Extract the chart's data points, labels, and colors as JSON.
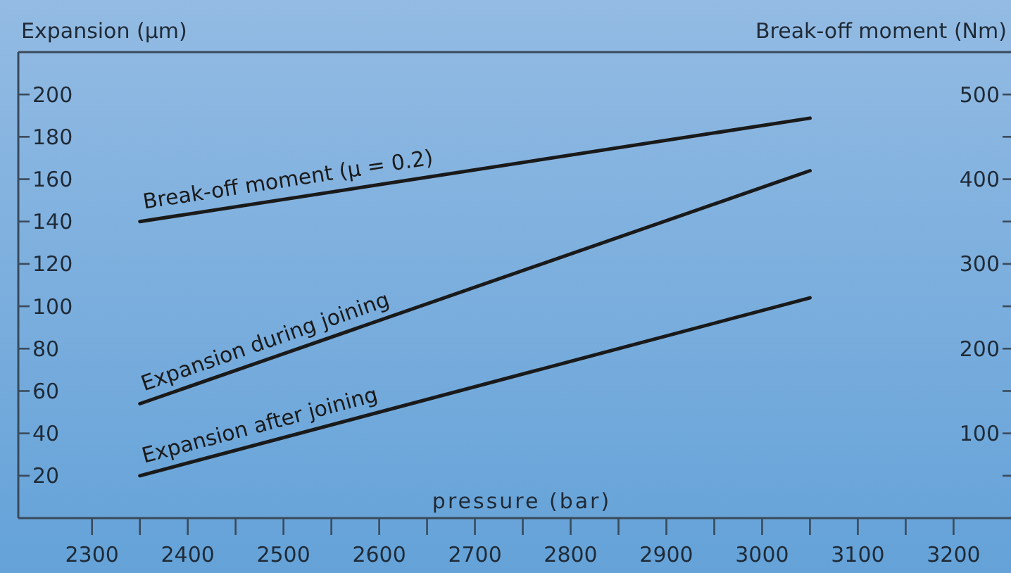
{
  "chart_data": {
    "type": "line",
    "xlabel": "pressure (bar)",
    "ylabel": "Expansion (µm)",
    "y2label": "Break-off moment (Nm)",
    "xlim": [
      2223,
      3260
    ],
    "xticks": [
      2300,
      {
        "value": 2350,
        "label": null
      },
      2400,
      {
        "value": 2450,
        "label": null
      },
      2500,
      {
        "value": 2550,
        "label": null
      },
      2600,
      {
        "value": 2650,
        "label": null
      },
      2700,
      {
        "value": 2750,
        "label": null
      },
      2800,
      {
        "value": 2850,
        "label": null
      },
      2900,
      {
        "value": 2950,
        "label": null
      },
      3000,
      {
        "value": 3050,
        "label": null
      },
      3100,
      {
        "value": 3150,
        "label": null
      },
      3200
    ],
    "ylim": [
      0,
      220
    ],
    "yticks": [
      20,
      40,
      60,
      80,
      100,
      120,
      140,
      160,
      180,
      200
    ],
    "y2lim": [
      0,
      550
    ],
    "y2ticks": [
      {
        "value": 50,
        "label": null
      },
      100,
      {
        "value": 150,
        "label": null
      },
      200,
      {
        "value": 250,
        "label": null
      },
      300,
      {
        "value": 350,
        "label": null
      },
      400,
      {
        "value": 450,
        "label": null
      },
      500
    ],
    "x": [
      2350,
      3050
    ],
    "series": [
      {
        "name": "Break-off moment (μ = 0.2)",
        "color": "#1a1a1a",
        "axis": "y2",
        "values": [
          350,
          472
        ]
      },
      {
        "name": "Expansion during joining",
        "color": "#1a1a1a",
        "values": [
          54,
          164
        ]
      },
      {
        "name": "Expansion after joining",
        "color": "#1a1a1a",
        "values": [
          20,
          104
        ]
      }
    ],
    "grid": false,
    "line_style": "solid",
    "marker": "none"
  }
}
